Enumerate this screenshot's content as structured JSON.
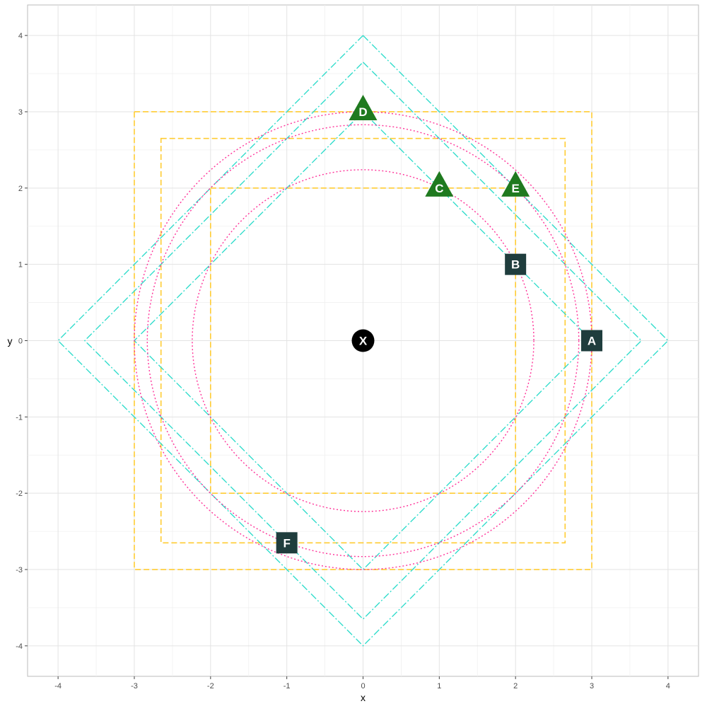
{
  "chart_data": {
    "type": "scatter",
    "title": "",
    "xlabel": "x",
    "ylabel": "y",
    "xlim": [
      -4.4,
      4.4
    ],
    "ylim": [
      -4.4,
      4.4
    ],
    "grid": true,
    "legend": "none",
    "x_ticks": [
      -4,
      -3,
      -2,
      -1,
      0,
      1,
      2,
      3,
      4
    ],
    "y_ticks": [
      -4,
      -3,
      -2,
      -1,
      0,
      1,
      2,
      3,
      4
    ],
    "points": [
      {
        "label": "X",
        "x": 0,
        "y": 0,
        "shape": "circle",
        "color": "#000000"
      },
      {
        "label": "A",
        "x": 3,
        "y": 0,
        "shape": "square",
        "color": "#1f3d3d"
      },
      {
        "label": "B",
        "x": 2,
        "y": 1,
        "shape": "square",
        "color": "#1f3d3d"
      },
      {
        "label": "C",
        "x": 1,
        "y": 2,
        "shape": "triangle",
        "color": "#1f7a1f"
      },
      {
        "label": "D",
        "x": 0,
        "y": 3,
        "shape": "triangle",
        "color": "#1f7a1f"
      },
      {
        "label": "E",
        "x": 2,
        "y": 2,
        "shape": "triangle",
        "color": "#1f7a1f"
      },
      {
        "label": "F",
        "x": -1,
        "y": -2.65,
        "shape": "square",
        "color": "#1f3d3d"
      }
    ],
    "squares": {
      "color": "#ffcc33",
      "half_sides": [
        2,
        2.65,
        3
      ]
    },
    "diamonds": {
      "color": "#33ddcc",
      "half_diagonals": [
        3,
        3.65,
        4
      ]
    },
    "circles": {
      "color": "#ff3399",
      "radii": [
        2.24,
        2.83,
        3
      ]
    }
  }
}
